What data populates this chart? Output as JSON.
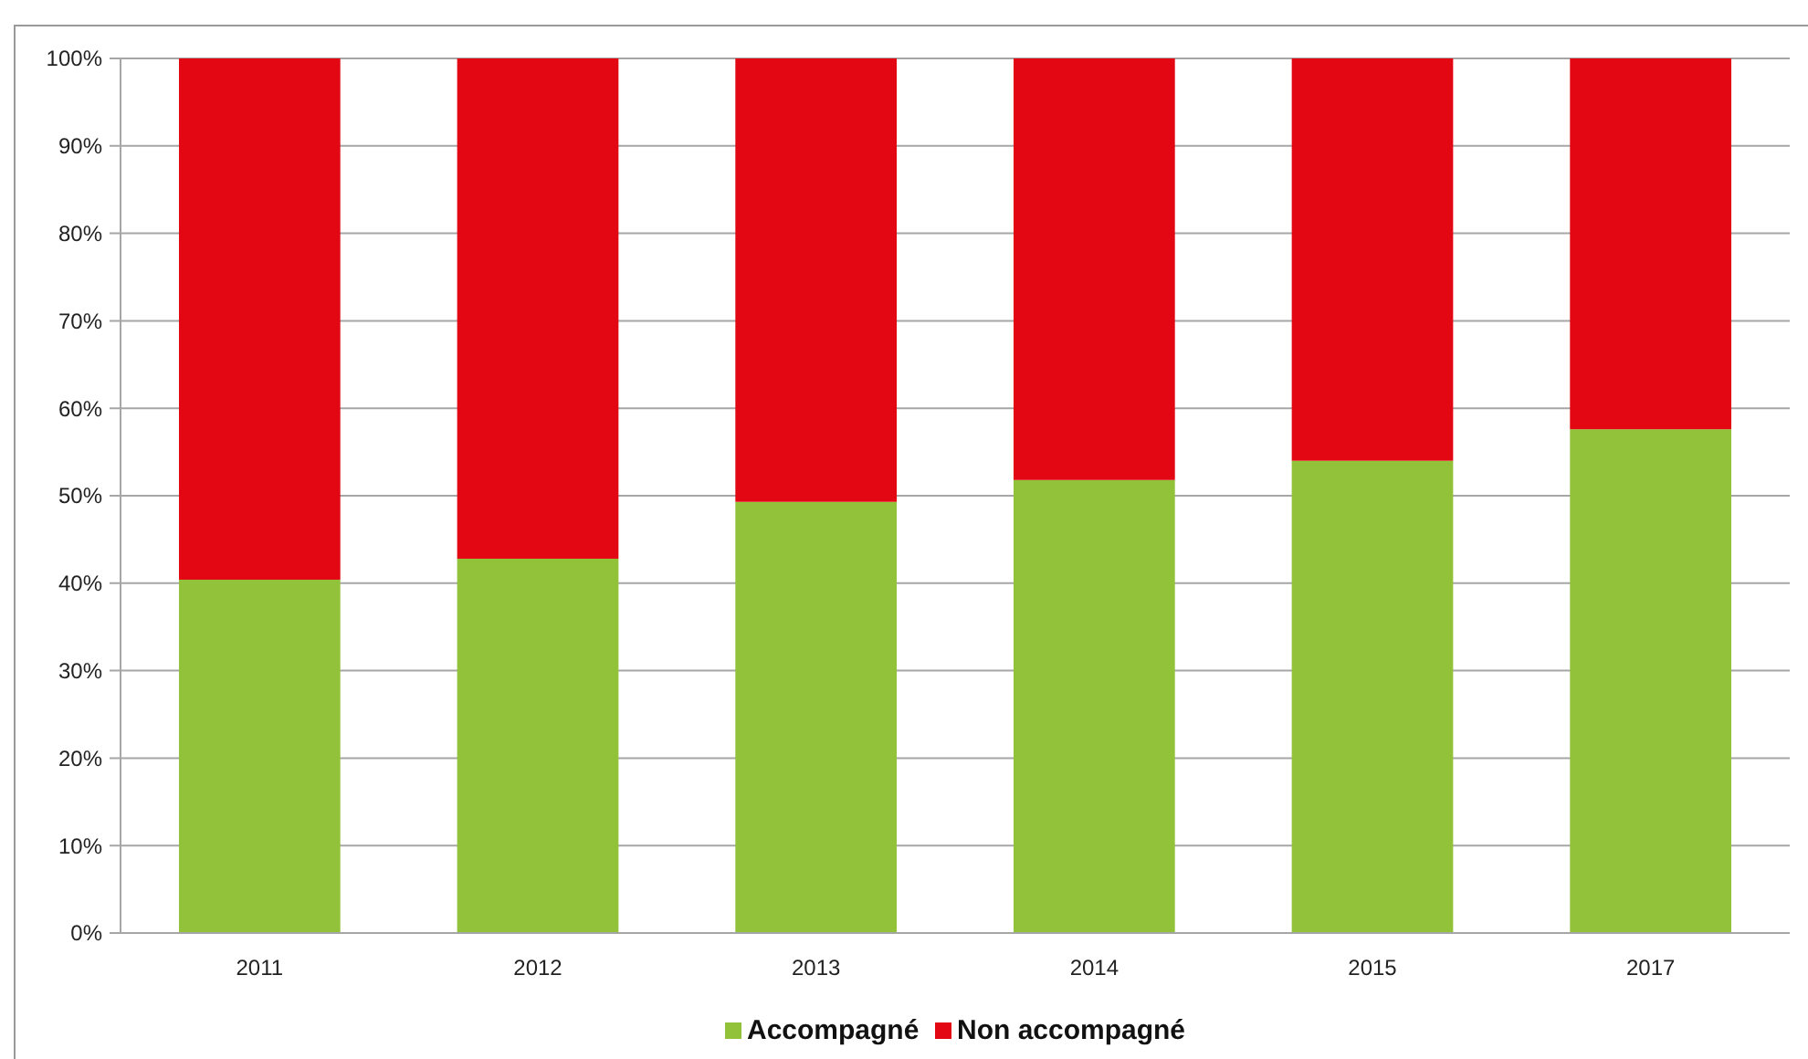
{
  "chart_data": {
    "type": "bar",
    "stacked": true,
    "categories": [
      "2011",
      "2012",
      "2013",
      "2014",
      "2015",
      "2017"
    ],
    "series": [
      {
        "name": "Accompagné",
        "color": "#92c13a",
        "values": [
          40.4,
          42.8,
          49.3,
          51.8,
          54.0,
          57.6
        ]
      },
      {
        "name": "Non accompagné",
        "color": "#e30613",
        "values": [
          59.6,
          57.2,
          50.7,
          48.2,
          46.0,
          42.4
        ]
      }
    ],
    "ylim": [
      0,
      100
    ],
    "yticks": [
      {
        "value": 0,
        "label": "0%"
      },
      {
        "value": 10,
        "label": "10%"
      },
      {
        "value": 20,
        "label": "20%"
      },
      {
        "value": 30,
        "label": "30%"
      },
      {
        "value": 40,
        "label": "40%"
      },
      {
        "value": 50,
        "label": "50%"
      },
      {
        "value": 60,
        "label": "60%"
      },
      {
        "value": 70,
        "label": "70%"
      },
      {
        "value": 80,
        "label": "80%"
      },
      {
        "value": 90,
        "label": "90%"
      },
      {
        "value": 100,
        "label": "100%"
      }
    ],
    "grid": "y",
    "legend": "bottom"
  }
}
